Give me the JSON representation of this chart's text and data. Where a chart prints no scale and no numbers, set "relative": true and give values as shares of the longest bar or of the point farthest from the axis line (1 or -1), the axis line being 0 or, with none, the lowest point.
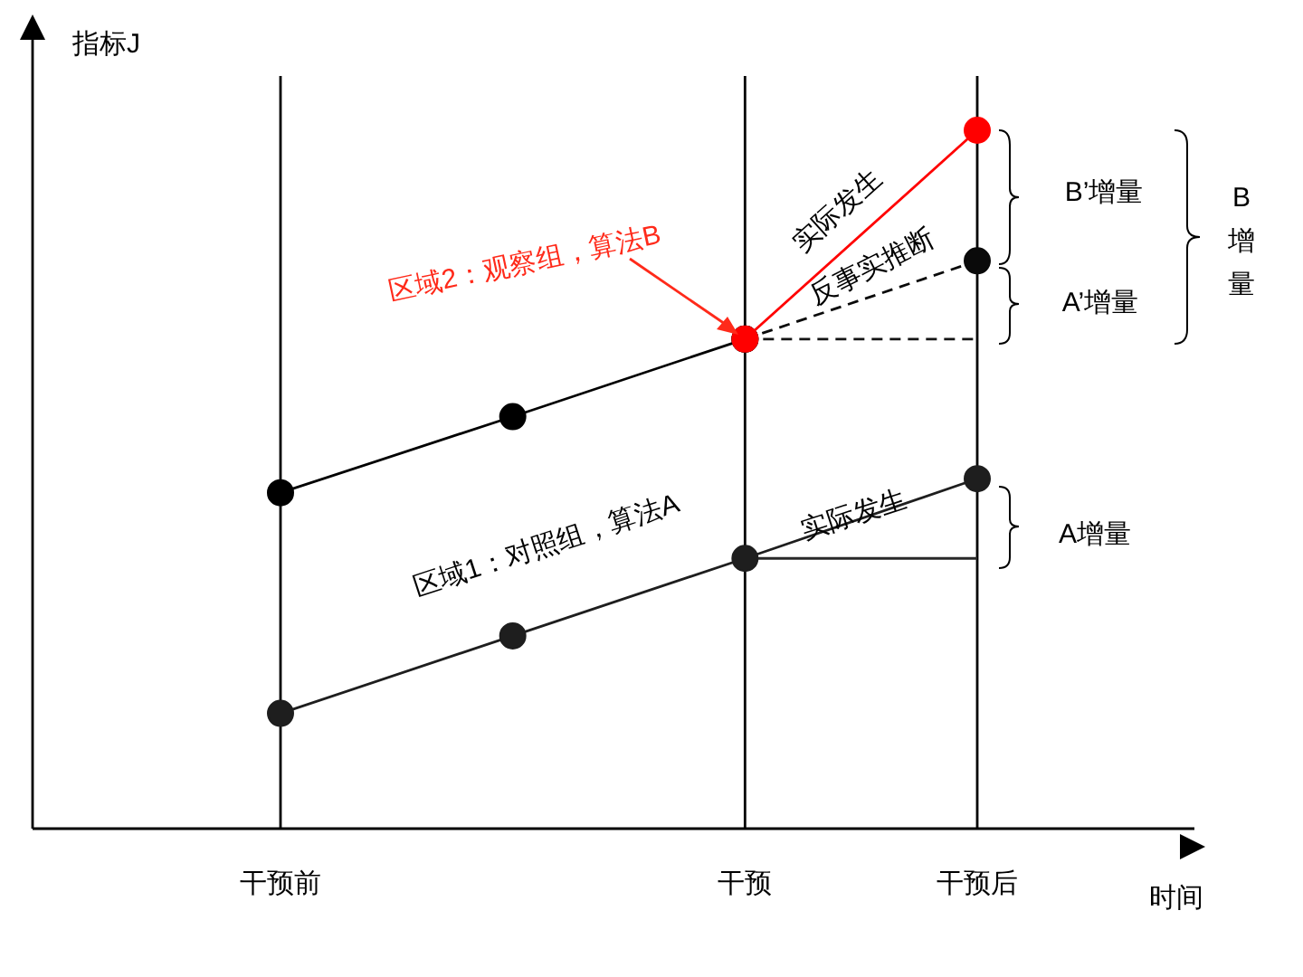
{
  "chart_data": {
    "type": "line",
    "relative": true,
    "xlabel": "时间",
    "ylabel": "指标J",
    "categories": [
      "干预前",
      null,
      "干预",
      "干预后"
    ],
    "series": [
      {
        "color": "#ff0000",
        "values": [
          null,
          null,
          0.701,
          1
        ]
      },
      {
        "color": "#000000",
        "values": [
          0.481,
          0.59,
          0.701,
          null
        ]
      },
      {
        "color": "#0a0a0a",
        "values": [
          null,
          null,
          0.701,
          0.813
        ],
        "line_style": "dashed"
      },
      {
        "color": "#141414",
        "values": [
          null,
          null,
          0.701,
          0.701
        ],
        "line_style": "dashed",
        "marker": "none"
      },
      {
        "color": "#1e1e1e",
        "values": [
          0.165,
          0.276,
          0.387,
          0.501
        ]
      },
      {
        "color": "#282828",
        "values": [
          null,
          null,
          0.387,
          0.387
        ],
        "marker": "none"
      }
    ],
    "ref_lines": [
      {
        "axis": "x",
        "value": "干预前"
      },
      {
        "axis": "x",
        "value": "干预"
      },
      {
        "axis": "x",
        "value": "干预后"
      }
    ],
    "annotations": [
      "区域2：观察组，算法B",
      "区域1：对照组，算法A",
      "实际发生",
      "反事实推断",
      "实际发生",
      "B’增量",
      "A’增量",
      "B增量",
      "A增量"
    ],
    "marker": "circle",
    "line_style": "solid",
    "grid": false,
    "legend": false
  }
}
